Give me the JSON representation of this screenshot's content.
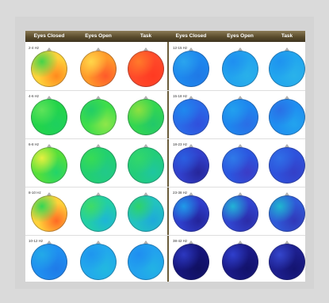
{
  "headers": [
    "Eyes Closed",
    "Eyes Open",
    "Task",
    "Eyes Closed",
    "Eyes Open",
    "Task"
  ],
  "rows_left": [
    {
      "label": "2-4 Hz",
      "maps": [
        {
          "c1": "#ffd23a",
          "c2": "#44d34a",
          "c3": "#ff8a1e"
        },
        {
          "c1": "#ff9a2a",
          "c2": "#ffd64a",
          "c3": "#ff5a2a"
        },
        {
          "c1": "#ff4a2a",
          "c2": "#ff7a2a",
          "c3": "#ff3a22"
        }
      ]
    },
    {
      "label": "4-6 Hz",
      "maps": [
        {
          "c1": "#22d44a",
          "c2": "#5fe35a",
          "c3": "#1ed05e"
        },
        {
          "c1": "#3fde4a",
          "c2": "#22cd66",
          "c3": "#8ee64a"
        },
        {
          "c1": "#33d650",
          "c2": "#8ee040",
          "c3": "#22c86a"
        }
      ]
    },
    {
      "label": "6-8 Hz",
      "maps": [
        {
          "c1": "#55df3a",
          "c2": "#e5f040",
          "c3": "#22d46a"
        },
        {
          "c1": "#22d070",
          "c2": "#38db55",
          "c3": "#22c98a"
        },
        {
          "c1": "#22cd7a",
          "c2": "#33d76a",
          "c3": "#1fc6a0"
        }
      ]
    },
    {
      "label": "8-10 Hz",
      "maps": [
        {
          "c1": "#ffd23a",
          "c2": "#33d654",
          "c3": "#ff6a24"
        },
        {
          "c1": "#22cfa5",
          "c2": "#3fdb66",
          "c3": "#1eb6d6"
        },
        {
          "c1": "#22c3bf",
          "c2": "#2ed26a",
          "c3": "#1ea9da"
        }
      ]
    },
    {
      "label": "10-12 Hz",
      "maps": [
        {
          "c1": "#1f8ff0",
          "c2": "#22a9e8",
          "c3": "#1f7be8"
        },
        {
          "c1": "#22a9ec",
          "c2": "#1f96ee",
          "c3": "#22b8e0"
        },
        {
          "c1": "#22a2ee",
          "c2": "#1f8ef0",
          "c3": "#22b2e4"
        }
      ]
    }
  ],
  "rows_right": [
    {
      "label": "12-15 Hz",
      "maps": [
        {
          "c1": "#1e88ee",
          "c2": "#2aa4ee",
          "c3": "#1f79e6"
        },
        {
          "c1": "#22a3ee",
          "c2": "#1f8ff0",
          "c3": "#29b0ea"
        },
        {
          "c1": "#22a6ee",
          "c2": "#1f93ef",
          "c3": "#2ab2ea"
        }
      ]
    },
    {
      "label": "15-18 Hz",
      "maps": [
        {
          "c1": "#2a6ae8",
          "c2": "#1f88ee",
          "c3": "#3050dc"
        },
        {
          "c1": "#1e86ee",
          "c2": "#22a0ee",
          "c3": "#2a6ee6"
        },
        {
          "c1": "#1f8ef0",
          "c2": "#2a70e6",
          "c3": "#22a3ee"
        }
      ]
    },
    {
      "label": "18-23 Hz",
      "maps": [
        {
          "c1": "#3140cc",
          "c2": "#2a5fe0",
          "c3": "#26269a"
        },
        {
          "c1": "#2b56e0",
          "c2": "#2f7ae8",
          "c3": "#3b3cc6"
        },
        {
          "c1": "#2e52dc",
          "c2": "#2f6ee6",
          "c3": "#3440c8"
        }
      ]
    },
    {
      "label": "23-38 Hz",
      "maps": [
        {
          "c1": "#2f3fcc",
          "c2": "#1f9ae8",
          "c3": "#23249a"
        },
        {
          "c1": "#3146d0",
          "c2": "#22b3d6",
          "c3": "#2b2ca8"
        },
        {
          "c1": "#2f5ad8",
          "c2": "#1fb6d0",
          "c3": "#3038b8"
        }
      ]
    },
    {
      "label": "38-42 Hz",
      "maps": [
        {
          "c1": "#15157a",
          "c2": "#2c38c0",
          "c3": "#101060"
        },
        {
          "c1": "#1a1a86",
          "c2": "#2f3fcc",
          "c3": "#12126a"
        },
        {
          "c1": "#1d1f8e",
          "c2": "#3446cc",
          "c3": "#141470"
        }
      ]
    }
  ]
}
